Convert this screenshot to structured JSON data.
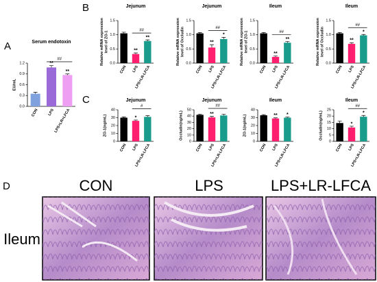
{
  "panel_labels": [
    "A",
    "B",
    "C",
    "D"
  ],
  "chart_data": [
    {
      "type": "bar",
      "title": "Serum endotoxin",
      "ylabel": [
        "EU/mL"
      ],
      "categories": [
        "CON",
        "LPS",
        "LPS+LR+LFCA"
      ],
      "values": [
        0.35,
        1.08,
        0.87
      ],
      "errors": [
        0.04,
        0.05,
        0.03
      ],
      "colors": [
        "#7fa1dd",
        "#9a6bd8",
        "#ee9ff4"
      ],
      "ylim": [
        0,
        1.2
      ],
      "yticks": [
        {
          "value": 0,
          "label": "0.0"
        },
        0.3,
        0.6,
        0.9,
        1.2
      ],
      "significance": [
        null,
        "**",
        "**"
      ],
      "comparison": "##"
    },
    {
      "type": "bar",
      "title": "Jejunum",
      "ylabel": [
        "Relative mRNA expression",
        "level of ZO-1"
      ],
      "categories": [
        "CON",
        "LPS",
        "LPS+LR-LFCA"
      ],
      "values": [
        1.05,
        0.32,
        0.78
      ],
      "errors": [
        0.04,
        0.04,
        0.04
      ],
      "colors": [
        "#000000",
        "#ff1f6e",
        "#1a9c8c"
      ],
      "ylim": [
        0,
        1.5
      ],
      "yticks": [
        {
          "value": 0,
          "label": "0.0"
        },
        0.5,
        {
          "value": 1,
          "label": "1.0"
        },
        1.5
      ],
      "significance": [
        null,
        "**",
        "**"
      ],
      "comparison": "##"
    },
    {
      "type": "bar",
      "title": "Jejunum",
      "ylabel": [
        "Relative mRNA expression",
        "level of Occludin"
      ],
      "categories": [
        "CON",
        "LPS",
        "LPS+LR-LFCA"
      ],
      "values": [
        1.05,
        0.55,
        0.85
      ],
      "errors": [
        0.03,
        0.1,
        0.06
      ],
      "colors": [
        "#000000",
        "#ff1f6e",
        "#1a9c8c"
      ],
      "ylim": [
        0,
        1.5
      ],
      "yticks": [
        {
          "value": 0,
          "label": "0.0"
        },
        0.5,
        {
          "value": 1,
          "label": "1.0"
        },
        1.5
      ],
      "significance": [
        null,
        "**",
        "*"
      ],
      "comparison": "##"
    },
    {
      "type": "bar",
      "title": "Ileum",
      "ylabel": [
        "Relative mRNA expression",
        "level of ZO-1"
      ],
      "categories": [
        "CON",
        "LPS",
        "LPS+LR-LFCA"
      ],
      "values": [
        1.05,
        0.22,
        0.72
      ],
      "errors": [
        0.03,
        0.03,
        0.04
      ],
      "colors": [
        "#000000",
        "#ff1f6e",
        "#1a9c8c"
      ],
      "ylim": [
        0,
        1.5
      ],
      "yticks": [
        {
          "value": 0,
          "label": "0.0"
        },
        0.5,
        {
          "value": 1,
          "label": "1.0"
        },
        1.5
      ],
      "significance": [
        null,
        "**",
        "**"
      ],
      "comparison": "##"
    },
    {
      "type": "bar",
      "title": "Ileum",
      "ylabel": [
        "Relative mRNA expression",
        "level of Occludin"
      ],
      "categories": [
        "CON",
        "LPS",
        "LPS+LR-LFCA"
      ],
      "values": [
        1.05,
        0.68,
        0.98
      ],
      "errors": [
        0.03,
        0.04,
        0.03
      ],
      "colors": [
        "#000000",
        "#ff1f6e",
        "#1a9c8c"
      ],
      "ylim": [
        0,
        1.5
      ],
      "yticks": [
        {
          "value": 0,
          "label": "0.0"
        },
        0.5,
        {
          "value": 1,
          "label": "1.0"
        },
        1.5
      ],
      "significance": [
        null,
        "**",
        "*"
      ],
      "comparison": "##"
    },
    {
      "type": "bar",
      "title": "Jejunum",
      "ylabel": [
        "ZO-1(ng/mL)"
      ],
      "categories": [
        "CON",
        "LPS",
        "LPS+LR-LFCA"
      ],
      "values": [
        30,
        26,
        31
      ],
      "errors": [
        1,
        1,
        1.5
      ],
      "colors": [
        "#000000",
        "#ff1f6e",
        "#1a9c8c"
      ],
      "ylim": [
        0,
        40
      ],
      "yticks": [
        0,
        10,
        20,
        30,
        40
      ],
      "significance": [
        null,
        "*",
        null
      ],
      "comparison": "#"
    },
    {
      "type": "bar",
      "title": "Jejunum",
      "ylabel": [
        "Occludin(ng/mL)"
      ],
      "categories": [
        "CON",
        "LPS",
        "LPS+LR-LFCA"
      ],
      "values": [
        42,
        38,
        41
      ],
      "errors": [
        1,
        1.5,
        2
      ],
      "colors": [
        "#000000",
        "#ff1f6e",
        "#1a9c8c"
      ],
      "ylim": [
        0,
        50
      ],
      "yticks": [
        0,
        10,
        20,
        30,
        40,
        50
      ],
      "significance": [
        null,
        "**",
        null
      ],
      "comparison": "##"
    },
    {
      "type": "bar",
      "title": "Ileum",
      "ylabel": [
        "ZO-1(ng/mL)"
      ],
      "categories": [
        "CON",
        "LPS",
        "LPS+LR-LFCA"
      ],
      "values": [
        33,
        29,
        30
      ],
      "errors": [
        0.8,
        0.8,
        0.8
      ],
      "colors": [
        "#000000",
        "#ff1f6e",
        "#1a9c8c"
      ],
      "ylim": [
        0,
        40
      ],
      "yticks": [
        0,
        10,
        20,
        30,
        40
      ],
      "significance": [
        null,
        "**",
        "*"
      ]
    },
    {
      "type": "bar",
      "title": "Ileum",
      "ylabel": [
        "Occludin(ng/mL)"
      ],
      "categories": [
        "CON",
        "LPS",
        "LPS+LR-LFCA"
      ],
      "values": [
        14.5,
        11,
        19.5
      ],
      "errors": [
        1.5,
        1,
        1
      ],
      "colors": [
        "#000000",
        "#ff1f6e",
        "#1a9c8c"
      ],
      "ylim": [
        0,
        25
      ],
      "yticks": [
        0,
        5,
        10,
        15,
        20,
        25
      ],
      "significance": [
        null,
        "*",
        "*"
      ],
      "comparison": "##"
    }
  ],
  "histology": {
    "titles": [
      "CON",
      "LPS",
      "LPS+LR-LFCA"
    ],
    "row_label": "Ileum"
  }
}
